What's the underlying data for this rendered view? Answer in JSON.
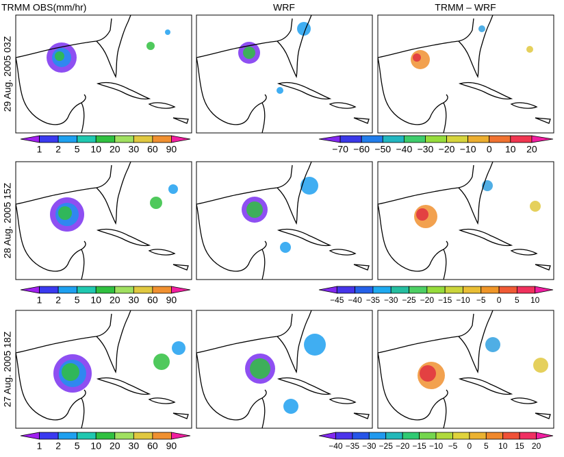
{
  "columns": [
    "TRMM OBS(mm/hr)",
    "WRF",
    "TRMM – WRF"
  ],
  "rows": [
    {
      "label": "29 Aug. 2005  03Z",
      "rain_scale": [
        "1",
        "2",
        "5",
        "10",
        "20",
        "30",
        "60",
        "90"
      ],
      "diff_scale": [
        "−70",
        "−60",
        "−50",
        "−40",
        "−30",
        "−20",
        "−10",
        "0",
        "10",
        "20"
      ]
    },
    {
      "label": "28 Aug. 2005  15Z",
      "rain_scale": [
        "1",
        "2",
        "5",
        "10",
        "20",
        "30",
        "60",
        "90"
      ],
      "diff_scale": [
        "−45",
        "−40",
        "−35",
        "−30",
        "−25",
        "−20",
        "−15",
        "−10",
        "−5",
        "0",
        "5",
        "10"
      ]
    },
    {
      "label": "27 Aug. 2005  18Z",
      "rain_scale": [
        "1",
        "2",
        "5",
        "10",
        "20",
        "30",
        "60",
        "90"
      ],
      "diff_scale": [
        "−40",
        "−35",
        "−30",
        "−25",
        "−20",
        "−15",
        "−10",
        "−5",
        "0",
        "5",
        "10",
        "15",
        "20"
      ]
    }
  ]
}
